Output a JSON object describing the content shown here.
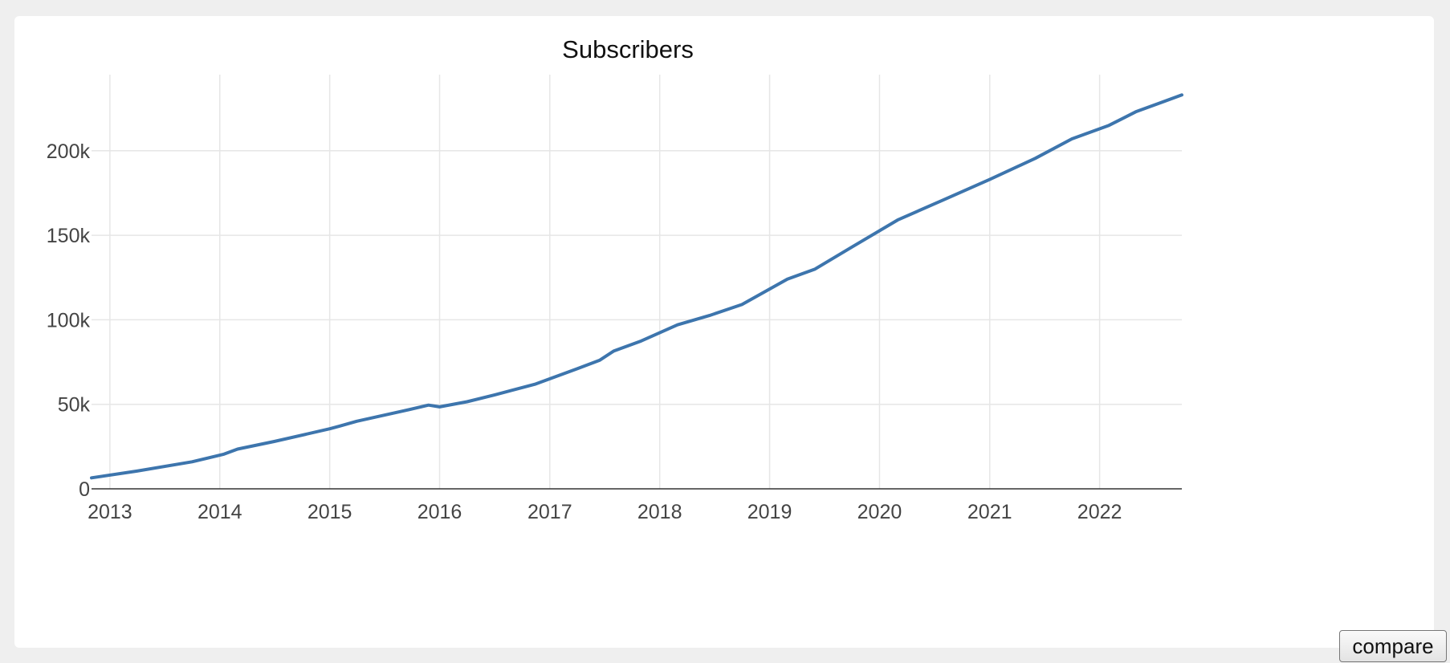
{
  "button": {
    "compare_label": "compare"
  },
  "chart_data": {
    "type": "line",
    "title": "Subscribers",
    "xlabel": "",
    "ylabel": "",
    "x_ticks": [
      "2013",
      "2014",
      "2015",
      "2016",
      "2017",
      "2018",
      "2019",
      "2020",
      "2021",
      "2022"
    ],
    "y_ticks": [
      "0",
      "50k",
      "100k",
      "150k",
      "200k"
    ],
    "xlim": [
      "2012-11-01",
      "2022-10-01"
    ],
    "ylim": [
      0,
      245000
    ],
    "grid": true,
    "line_color": "#3d75ad",
    "series": [
      {
        "x": [
          "2012-11-01",
          "2013-04-01",
          "2013-10-01",
          "2014-01-15",
          "2014-03-01",
          "2014-07-01",
          "2015-01-01",
          "2015-02-01",
          "2015-04-01",
          "2015-09-01",
          "2015-11-25",
          "2016-01-01",
          "2016-04-01",
          "2016-07-01",
          "2016-11-15",
          "2017-04-01",
          "2017-06-15",
          "2017-08-01",
          "2017-11-01",
          "2018-03-01",
          "2018-06-15",
          "2018-10-01",
          "2019-03-01",
          "2019-06-01",
          "2019-10-01",
          "2020-03-01",
          "2020-08-01",
          "2021-01-01",
          "2021-06-01",
          "2021-10-01",
          "2022-02-01",
          "2022-05-01",
          "2022-10-01"
        ],
        "values": [
          6500,
          10500,
          16000,
          20500,
          23500,
          28000,
          35500,
          37000,
          40000,
          46000,
          49500,
          48500,
          51500,
          55500,
          62000,
          71000,
          76000,
          81500,
          87500,
          97000,
          102500,
          109000,
          124000,
          130000,
          143000,
          159000,
          171000,
          183000,
          195500,
          207000,
          215000,
          223000,
          233000
        ]
      }
    ]
  }
}
